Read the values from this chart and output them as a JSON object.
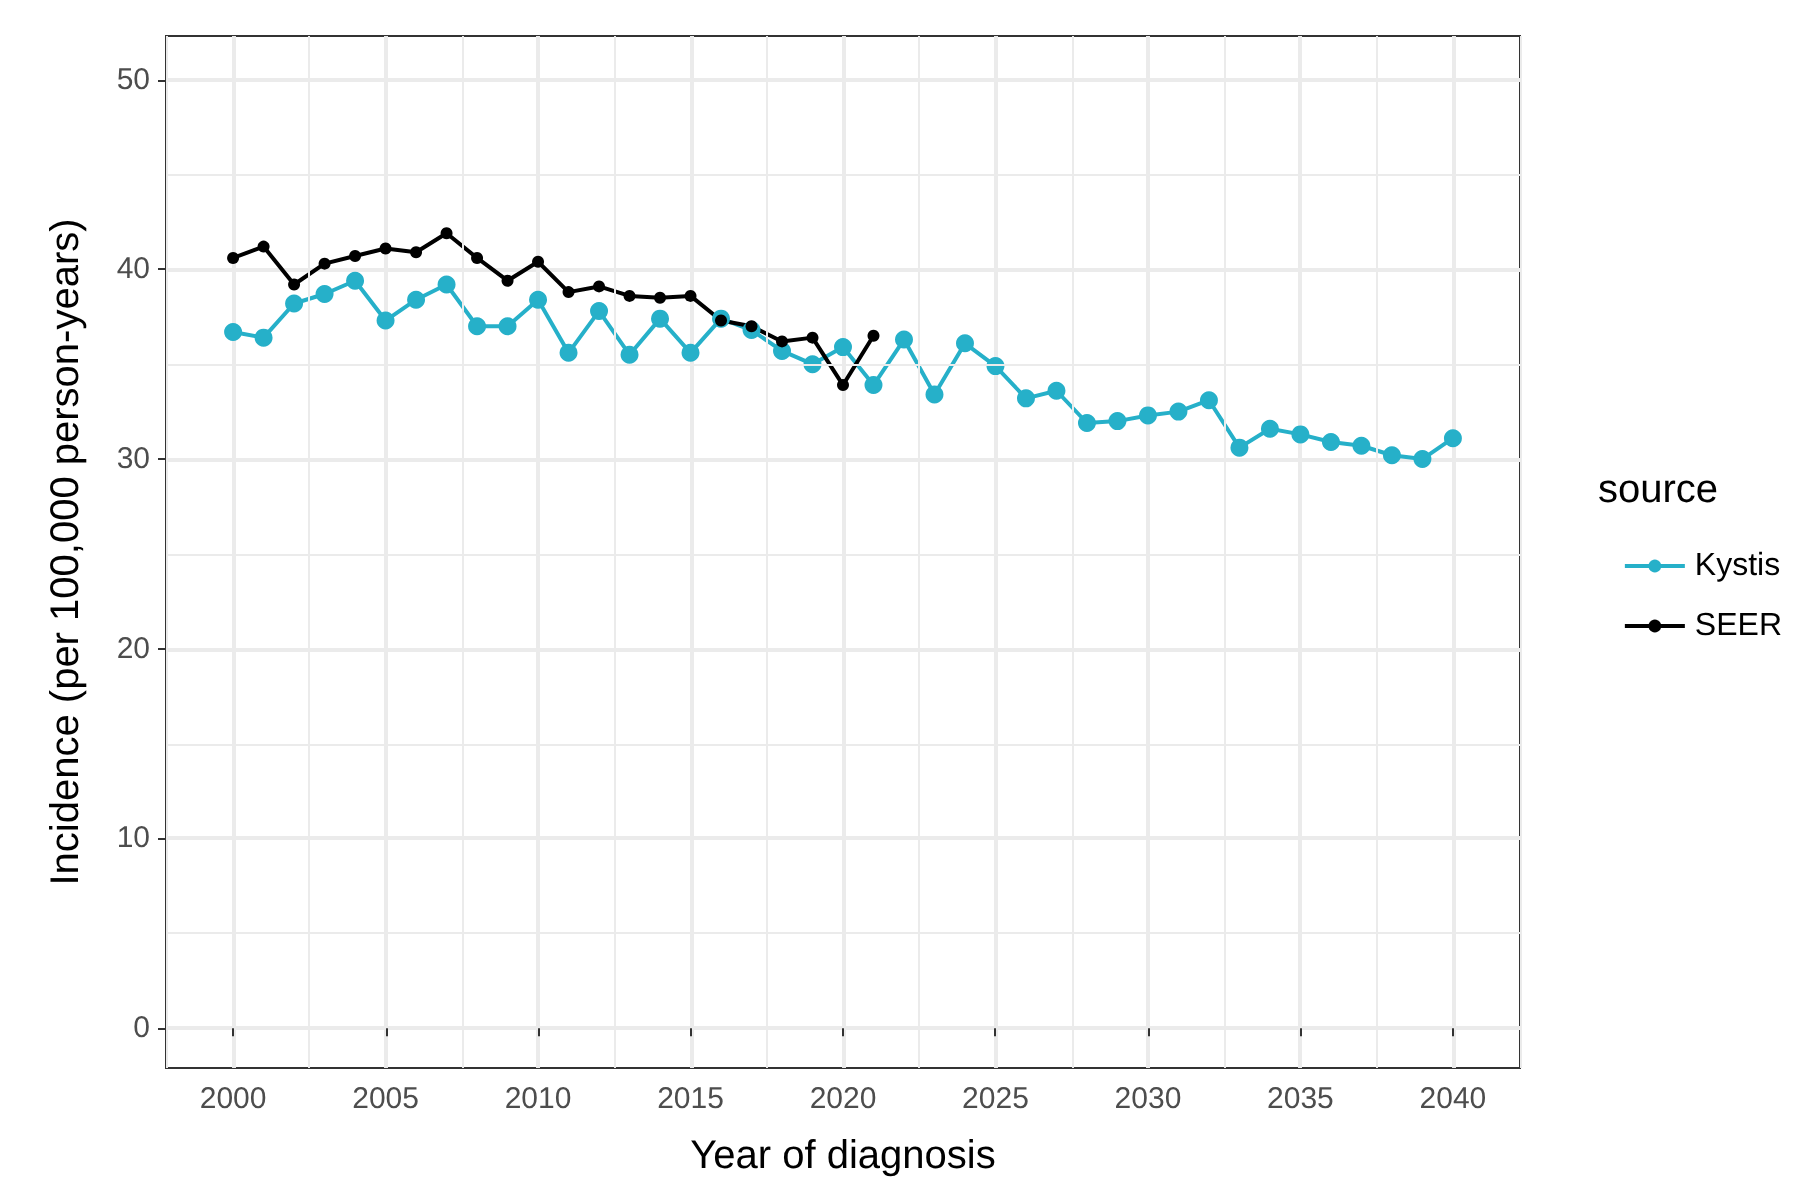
{
  "chart_data": {
    "type": "line",
    "xlabel": "Year of diagnosis",
    "ylabel": "Incidence (per 100,000 person-years)",
    "legend_title": "source",
    "x": [
      2000,
      2001,
      2002,
      2003,
      2004,
      2005,
      2006,
      2007,
      2008,
      2009,
      2010,
      2011,
      2012,
      2013,
      2014,
      2015,
      2016,
      2017,
      2018,
      2019,
      2020,
      2021,
      2022,
      2023,
      2024,
      2025,
      2026,
      2027,
      2028,
      2029,
      2030,
      2031,
      2032,
      2033,
      2034,
      2035,
      2036,
      2037,
      2038,
      2039,
      2040
    ],
    "series": [
      {
        "name": "Kystis",
        "color": "#26b0c9",
        "values": [
          36.7,
          36.4,
          38.2,
          38.7,
          39.4,
          37.3,
          38.4,
          39.2,
          37.0,
          37.0,
          38.4,
          35.6,
          37.8,
          35.5,
          37.4,
          35.6,
          37.4,
          36.8,
          35.7,
          35.0,
          35.9,
          33.9,
          36.3,
          33.4,
          36.1,
          34.9,
          33.2,
          33.6,
          31.9,
          32.0,
          32.3,
          32.5,
          33.1,
          30.6,
          31.6,
          31.3,
          30.9,
          30.7,
          30.2,
          30.0,
          31.1
        ]
      },
      {
        "name": "SEER",
        "color": "#000000",
        "values": [
          40.6,
          41.2,
          39.2,
          40.3,
          40.7,
          41.1,
          40.9,
          41.9,
          40.6,
          39.4,
          40.4,
          38.8,
          39.1,
          38.6,
          38.5,
          38.6,
          37.3,
          37.0,
          36.2,
          36.4,
          33.9,
          36.5,
          null,
          null,
          null,
          null,
          null,
          null,
          null,
          null,
          null,
          null,
          null,
          null,
          null,
          null,
          null,
          null,
          null,
          null,
          null
        ]
      }
    ],
    "xlim": [
      1997.8,
      2042.2
    ],
    "xticks": [
      2000,
      2005,
      2010,
      2015,
      2020,
      2025,
      2030,
      2035,
      2040
    ],
    "ylim": [
      -2.1,
      52.3
    ],
    "yticks": [
      0,
      10,
      20,
      30,
      40,
      50
    ],
    "grid": true,
    "legend": "right",
    "marker": "circle",
    "line_style": "solid"
  }
}
